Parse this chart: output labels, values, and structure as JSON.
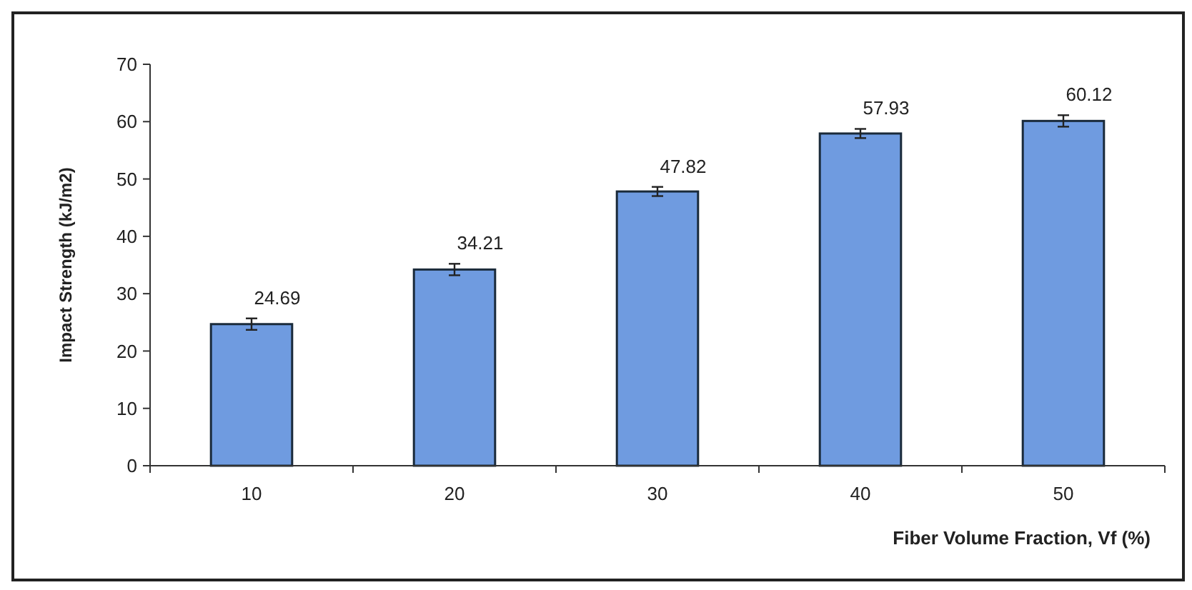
{
  "chart_data": {
    "type": "bar",
    "xlabel": "Fiber Volume Fraction, Vf (%)",
    "ylabel": "Impact Strength (kJ/m2)",
    "categories": [
      "10",
      "20",
      "30",
      "40",
      "50"
    ],
    "values": [
      24.69,
      34.21,
      47.82,
      57.93,
      60.12
    ],
    "errors": [
      1,
      1,
      0.8,
      0.8,
      1
    ],
    "color": "#6f9be0",
    "ylim": [
      0,
      70
    ],
    "yticks": [
      0,
      10,
      20,
      30,
      40,
      50,
      60,
      70
    ],
    "data_labels": true,
    "grid": false
  }
}
